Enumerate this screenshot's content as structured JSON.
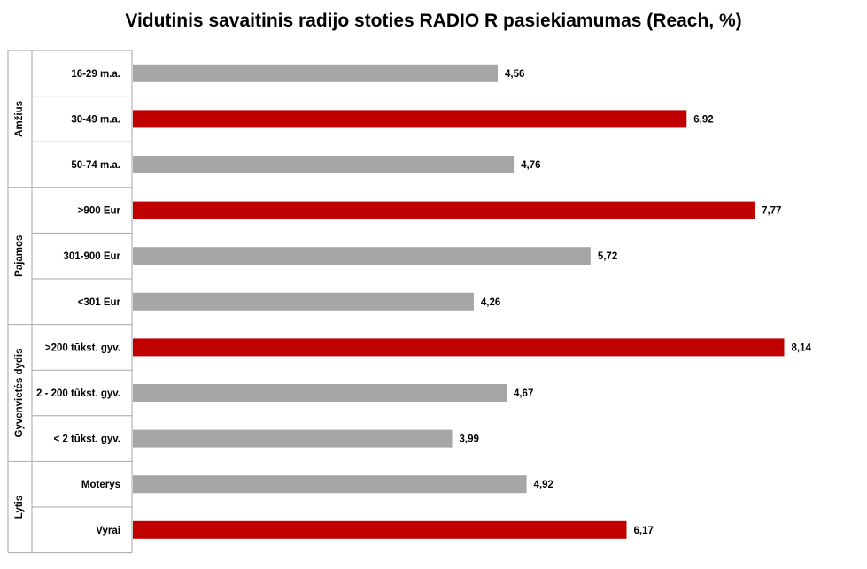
{
  "chart_data": {
    "type": "bar",
    "orientation": "horizontal",
    "title": "Vidutinis savaitinis radijo stoties RADIO R pasiekiamumas (Reach, %)",
    "groups": [
      {
        "name": "Amžius",
        "categories": [
          "16-29 m.a.",
          "30-49 m.a.",
          "50-74 m.a."
        ],
        "values": [
          4.56,
          6.92,
          4.76
        ],
        "value_labels": [
          "4,56",
          "6,92",
          "4,76"
        ],
        "highlight": [
          false,
          true,
          false
        ]
      },
      {
        "name": "Pajamos",
        "categories": [
          ">900 Eur",
          "301-900 Eur",
          "<301 Eur"
        ],
        "values": [
          7.77,
          5.72,
          4.26
        ],
        "value_labels": [
          "7,77",
          "5,72",
          "4,26"
        ],
        "highlight": [
          true,
          false,
          false
        ]
      },
      {
        "name": "Gyvenvietės dydis",
        "categories": [
          ">200 tūkst. gyv.",
          "2 - 200 tūkst. gyv.",
          "< 2 tūkst. gyv."
        ],
        "values": [
          8.14,
          4.67,
          3.99
        ],
        "value_labels": [
          "8,14",
          "4,67",
          "3,99"
        ],
        "highlight": [
          true,
          false,
          false
        ]
      },
      {
        "name": "Lytis",
        "categories": [
          "Moterys",
          "Vyrai"
        ],
        "values": [
          4.92,
          6.17
        ],
        "value_labels": [
          "4,92",
          "6,17"
        ],
        "highlight": [
          false,
          true
        ]
      }
    ],
    "xlim": [
      0,
      8.14
    ],
    "grid": false,
    "legend": "none",
    "colors": {
      "highlight": "#C00000",
      "default": "#A6A6A6",
      "axis": "#A6A6A6"
    }
  }
}
